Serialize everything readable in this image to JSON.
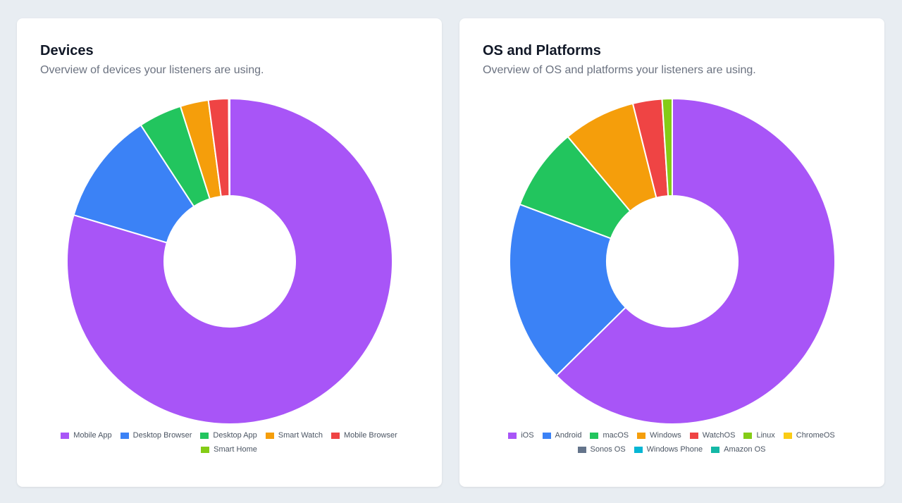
{
  "chart_data": [
    {
      "type": "donut",
      "title": "Devices",
      "subtitle": "Overview of devices your listeners are using.",
      "categories": [
        "Mobile App",
        "Desktop Browser",
        "Desktop App",
        "Smart Watch",
        "Mobile Browser",
        "Smart Home"
      ],
      "values": [
        79.6,
        11.2,
        4.3,
        2.8,
        2.0,
        0.1
      ],
      "colors": [
        "#a855f7",
        "#3b82f6",
        "#22c55e",
        "#f59e0b",
        "#ef4444",
        "#84cc16"
      ],
      "legend": "bottom"
    },
    {
      "type": "donut",
      "title": "OS and Platforms",
      "subtitle": "Overview of OS and platforms your listeners are using.",
      "categories": [
        "iOS",
        "Android",
        "macOS",
        "Windows",
        "WatchOS",
        "Linux",
        "ChromeOS",
        "Sonos OS",
        "Windows Phone",
        "Amazon OS"
      ],
      "values": [
        62.6,
        18.1,
        8.2,
        7.2,
        2.9,
        1.0,
        0,
        0,
        0,
        0
      ],
      "colors": [
        "#a855f7",
        "#3b82f6",
        "#22c55e",
        "#f59e0b",
        "#ef4444",
        "#84cc16",
        "#facc15",
        "#64748b",
        "#06b6d4",
        "#14b8a6"
      ],
      "legend": "bottom"
    }
  ]
}
